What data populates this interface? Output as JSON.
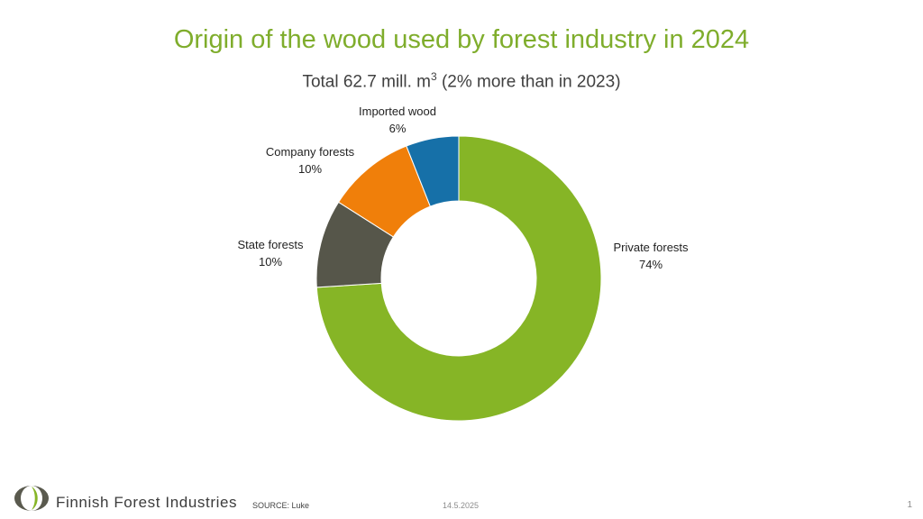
{
  "chart_data": {
    "type": "pie",
    "donut": true,
    "title": "Origin of the wood used by forest industry in 2024",
    "subtitle_prefix": "Total 62.7 mill. m",
    "subtitle_sup": "3",
    "subtitle_suffix": " (2% more than in 2023)",
    "slices": [
      {
        "label": "Private forests",
        "value": 74,
        "display": "74%",
        "color": "#86b526"
      },
      {
        "label": "State forests",
        "value": 10,
        "display": "10%",
        "color": "#56564a"
      },
      {
        "label": "Company forests",
        "value": 10,
        "display": "10%",
        "color": "#f07f0a"
      },
      {
        "label": "Imported wood",
        "value": 6,
        "display": "6%",
        "color": "#1670a8"
      }
    ]
  },
  "footer": {
    "brand": "Finnish Forest Industries",
    "source": "SOURCE: Luke",
    "date": "14.5.2025",
    "page": "1"
  }
}
